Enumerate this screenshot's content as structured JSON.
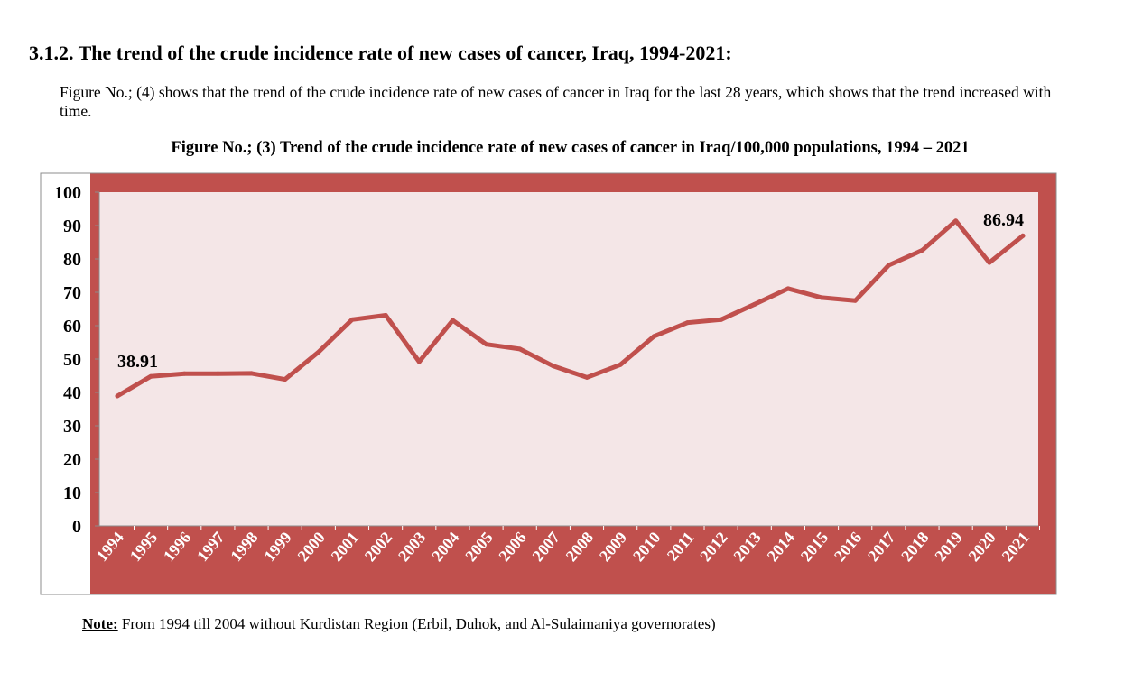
{
  "section": {
    "heading": "3.1.2. The trend of the crude incidence rate of new cases of cancer, Iraq, 1994-2021:",
    "paragraph": "Figure No.; (4) shows that the trend of the crude incidence rate of new cases of cancer in Iraq for the last 28 years, which shows that the trend increased with time."
  },
  "figure": {
    "caption": "Figure No.; (3) Trend of the crude incidence rate of new cases of cancer in Iraq/100,000 populations, 1994 – 2021"
  },
  "note": {
    "label": "Note:",
    "text": " From 1994 till 2004 without Kurdistan Region (Erbil, Duhok, and Al-Sulaimaniya governorates)"
  },
  "colors": {
    "frame": "#c0504d",
    "plot_bg": "#f4e6e7",
    "line": "#c0504d"
  },
  "chart_data": {
    "type": "line",
    "title": "Trend of the crude incidence rate of new cases of cancer in Iraq/100,000 populations, 1994 – 2021",
    "xlabel": "",
    "ylabel": "",
    "ylim": [
      0,
      100
    ],
    "yticks": [
      "0",
      "10",
      "20",
      "30",
      "40",
      "50",
      "60",
      "70",
      "80",
      "90",
      "100"
    ],
    "categories": [
      "1994",
      "1995",
      "1996",
      "1997",
      "1998",
      "1999",
      "2000",
      "2001",
      "2002",
      "2003",
      "2004",
      "2005",
      "2006",
      "2007",
      "2008",
      "2009",
      "2010",
      "2011",
      "2012",
      "2013",
      "2014",
      "2015",
      "2016",
      "2017",
      "2018",
      "2019",
      "2020",
      "2021"
    ],
    "series": [
      {
        "name": "Crude incidence rate",
        "values": [
          38.91,
          44.8,
          45.6,
          45.6,
          45.7,
          43.9,
          52.1,
          61.8,
          63.1,
          49.2,
          61.6,
          54.4,
          53.0,
          47.9,
          44.5,
          48.3,
          56.8,
          60.9,
          61.8,
          66.4,
          71.1,
          68.4,
          67.5,
          78.1,
          82.6,
          91.4,
          78.9,
          86.94
        ]
      }
    ],
    "data_labels": [
      {
        "category": "1994",
        "text": "38.91"
      },
      {
        "category": "2021",
        "text": "86.94"
      }
    ],
    "grid": false,
    "legend": "none"
  }
}
